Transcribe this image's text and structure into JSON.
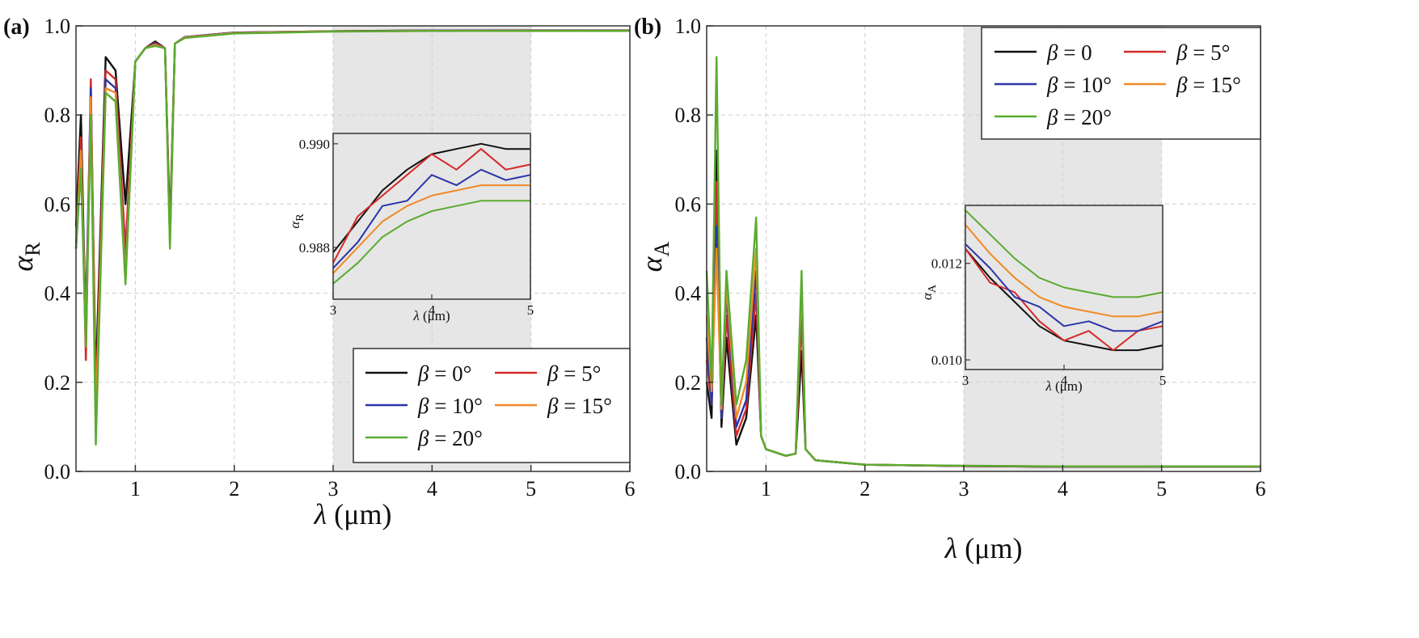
{
  "chart_data": [
    {
      "panel": "(a)",
      "type": "line",
      "xlabel": "λ (μm)",
      "ylabel": "αR",
      "xlim": [
        0.4,
        6
      ],
      "ylim": [
        0,
        1.0
      ],
      "xticks": [
        "1",
        "2",
        "3",
        "4",
        "5",
        "6"
      ],
      "yticks": [
        "0.0",
        "0.2",
        "0.4",
        "0.6",
        "0.8",
        "1.0"
      ],
      "shaded_region": [
        3,
        5
      ],
      "grid": true,
      "legend": {
        "placement": "bottom-right",
        "entries": [
          "β = 0°",
          "β = 5°",
          "β = 10°",
          "β = 15°",
          "β = 20°"
        ]
      },
      "series": [
        {
          "name": "β = 0°",
          "color": "#111111",
          "x": [
            0.4,
            0.45,
            0.5,
            0.55,
            0.6,
            0.7,
            0.8,
            0.9,
            1.0,
            1.1,
            1.2,
            1.3,
            1.35,
            1.4,
            1.5,
            2,
            3,
            4,
            5,
            6
          ],
          "y": [
            0.55,
            0.8,
            0.3,
            0.85,
            0.2,
            0.93,
            0.9,
            0.6,
            0.92,
            0.95,
            0.965,
            0.95,
            0.55,
            0.96,
            0.975,
            0.985,
            0.988,
            0.9897,
            0.9899,
            0.9898
          ]
        },
        {
          "name": "β = 5°",
          "color": "#d42a2a",
          "x": [
            0.4,
            0.45,
            0.5,
            0.55,
            0.6,
            0.7,
            0.8,
            0.9,
            1.0,
            1.1,
            1.2,
            1.3,
            1.35,
            1.4,
            1.5,
            2,
            3,
            4,
            5,
            6
          ],
          "y": [
            0.5,
            0.75,
            0.25,
            0.88,
            0.15,
            0.9,
            0.88,
            0.5,
            0.92,
            0.95,
            0.962,
            0.95,
            0.53,
            0.96,
            0.975,
            0.985,
            0.9878,
            0.9897,
            0.9893,
            0.9892
          ]
        },
        {
          "name": "β = 10°",
          "color": "#2b35a8",
          "x": [
            0.4,
            0.45,
            0.5,
            0.55,
            0.6,
            0.7,
            0.8,
            0.9,
            1.0,
            1.1,
            1.2,
            1.3,
            1.35,
            1.4,
            1.5,
            2,
            3,
            4,
            5,
            6
          ],
          "y": [
            0.5,
            0.7,
            0.35,
            0.86,
            0.1,
            0.88,
            0.86,
            0.45,
            0.92,
            0.95,
            0.96,
            0.95,
            0.52,
            0.96,
            0.975,
            0.985,
            0.9876,
            0.9894,
            0.9892,
            0.9891
          ]
        },
        {
          "name": "β = 15°",
          "color": "#f08a24",
          "x": [
            0.4,
            0.45,
            0.5,
            0.55,
            0.6,
            0.7,
            0.8,
            0.9,
            1.0,
            1.1,
            1.2,
            1.3,
            1.35,
            1.4,
            1.5,
            2,
            3,
            4,
            5,
            6
          ],
          "y": [
            0.5,
            0.72,
            0.3,
            0.84,
            0.12,
            0.86,
            0.85,
            0.44,
            0.92,
            0.95,
            0.958,
            0.95,
            0.51,
            0.96,
            0.974,
            0.984,
            0.9874,
            0.9888,
            0.989,
            0.9889
          ]
        },
        {
          "name": "β = 20°",
          "color": "#5aab30",
          "x": [
            0.4,
            0.45,
            0.5,
            0.55,
            0.6,
            0.7,
            0.8,
            0.9,
            1.0,
            1.1,
            1.2,
            1.3,
            1.35,
            1.4,
            1.5,
            2,
            3,
            4,
            5,
            6
          ],
          "y": [
            0.5,
            0.68,
            0.28,
            0.8,
            0.06,
            0.85,
            0.83,
            0.42,
            0.92,
            0.95,
            0.955,
            0.95,
            0.5,
            0.96,
            0.973,
            0.983,
            0.9872,
            0.9885,
            0.9887,
            0.9886
          ]
        }
      ],
      "inset": {
        "xlabel": "λ (μm)",
        "ylabel": "αR",
        "xlim": [
          3,
          5
        ],
        "ylim": [
          0.987,
          0.9902
        ],
        "xticks": [
          "3",
          "4",
          "5"
        ],
        "yticks": [
          "0.988",
          "0.990"
        ],
        "series": [
          {
            "name": "β = 0°",
            "x": [
              3,
              3.25,
              3.5,
              3.75,
              4,
              4.25,
              4.5,
              4.75,
              5
            ],
            "y": [
              0.9879,
              0.9885,
              0.9891,
              0.9895,
              0.9898,
              0.9899,
              0.99,
              0.9899,
              0.9899
            ]
          },
          {
            "name": "β = 5°",
            "x": [
              3,
              3.25,
              3.5,
              3.75,
              4,
              4.25,
              4.5,
              4.75,
              5
            ],
            "y": [
              0.9877,
              0.9886,
              0.989,
              0.9894,
              0.9898,
              0.9895,
              0.9899,
              0.9895,
              0.9896
            ]
          },
          {
            "name": "β = 10°",
            "x": [
              3,
              3.25,
              3.5,
              3.75,
              4,
              4.25,
              4.5,
              4.75,
              5
            ],
            "y": [
              0.9876,
              0.9881,
              0.9888,
              0.9889,
              0.9894,
              0.9892,
              0.9895,
              0.9893,
              0.9894
            ]
          },
          {
            "name": "β = 15°",
            "x": [
              3,
              3.25,
              3.5,
              3.75,
              4,
              4.25,
              4.5,
              4.75,
              5
            ],
            "y": [
              0.9875,
              0.988,
              0.9885,
              0.9888,
              0.989,
              0.9891,
              0.9892,
              0.9892,
              0.9892
            ]
          },
          {
            "name": "β = 20°",
            "x": [
              3,
              3.25,
              3.5,
              3.75,
              4,
              4.25,
              4.5,
              4.75,
              5
            ],
            "y": [
              0.9873,
              0.9877,
              0.9882,
              0.9885,
              0.9887,
              0.9888,
              0.9889,
              0.9889,
              0.9889
            ]
          }
        ]
      }
    },
    {
      "panel": "(b)",
      "type": "line",
      "xlabel": "λ (μm)",
      "ylabel": "αA",
      "xlim": [
        0.4,
        6
      ],
      "ylim": [
        0,
        1.0
      ],
      "xticks": [
        "1",
        "2",
        "3",
        "4",
        "5",
        "6"
      ],
      "yticks": [
        "0.0",
        "0.2",
        "0.4",
        "0.6",
        "0.8",
        "1.0"
      ],
      "shaded_region": [
        3,
        5
      ],
      "grid": true,
      "legend": {
        "placement": "top-right",
        "entries": [
          "β = 0",
          "β = 5°",
          "β = 10°",
          "β = 15°",
          "β = 20°"
        ]
      },
      "series": [
        {
          "name": "β = 0",
          "color": "#111111",
          "x": [
            0.4,
            0.45,
            0.5,
            0.55,
            0.6,
            0.7,
            0.8,
            0.9,
            0.95,
            1.0,
            1.2,
            1.3,
            1.36,
            1.4,
            1.5,
            2,
            3,
            4,
            5,
            6
          ],
          "y": [
            0.2,
            0.12,
            0.72,
            0.1,
            0.3,
            0.06,
            0.12,
            0.35,
            0.08,
            0.05,
            0.035,
            0.04,
            0.27,
            0.05,
            0.025,
            0.015,
            0.012,
            0.0104,
            0.0103,
            0.0103
          ]
        },
        {
          "name": "β = 5°",
          "color": "#d42a2a",
          "x": [
            0.4,
            0.45,
            0.5,
            0.55,
            0.6,
            0.7,
            0.8,
            0.9,
            0.95,
            1.0,
            1.2,
            1.3,
            1.36,
            1.4,
            1.5,
            2,
            3,
            4,
            5,
            6
          ],
          "y": [
            0.25,
            0.15,
            0.65,
            0.12,
            0.35,
            0.08,
            0.14,
            0.4,
            0.08,
            0.05,
            0.035,
            0.04,
            0.35,
            0.05,
            0.025,
            0.015,
            0.0122,
            0.0104,
            0.0108,
            0.0108
          ]
        },
        {
          "name": "β = 10°",
          "color": "#2b35a8",
          "x": [
            0.4,
            0.45,
            0.5,
            0.55,
            0.6,
            0.7,
            0.8,
            0.9,
            0.95,
            1.0,
            1.2,
            1.3,
            1.36,
            1.4,
            1.5,
            2,
            3,
            4,
            5,
            6
          ],
          "y": [
            0.3,
            0.15,
            0.55,
            0.12,
            0.4,
            0.1,
            0.16,
            0.45,
            0.08,
            0.05,
            0.035,
            0.04,
            0.4,
            0.05,
            0.025,
            0.015,
            0.0122,
            0.0106,
            0.0108,
            0.0108
          ]
        },
        {
          "name": "β = 15°",
          "color": "#f08a24",
          "x": [
            0.4,
            0.45,
            0.5,
            0.55,
            0.6,
            0.7,
            0.8,
            0.9,
            0.95,
            1.0,
            1.2,
            1.3,
            1.36,
            1.4,
            1.5,
            2,
            3,
            4,
            5,
            6
          ],
          "y": [
            0.35,
            0.18,
            0.5,
            0.14,
            0.42,
            0.12,
            0.2,
            0.5,
            0.08,
            0.05,
            0.035,
            0.04,
            0.42,
            0.05,
            0.025,
            0.015,
            0.0126,
            0.011,
            0.011,
            0.011
          ]
        },
        {
          "name": "β = 20°",
          "color": "#5aab30",
          "x": [
            0.4,
            0.45,
            0.5,
            0.55,
            0.6,
            0.7,
            0.8,
            0.9,
            0.95,
            1.0,
            1.2,
            1.3,
            1.36,
            1.4,
            1.5,
            2,
            3,
            4,
            5,
            6
          ],
          "y": [
            0.45,
            0.2,
            0.93,
            0.15,
            0.45,
            0.15,
            0.25,
            0.57,
            0.08,
            0.05,
            0.035,
            0.04,
            0.45,
            0.05,
            0.025,
            0.015,
            0.0128,
            0.0113,
            0.0112,
            0.0112
          ]
        }
      ],
      "inset": {
        "xlabel": "λ (μm)",
        "ylabel": "αA",
        "xlim": [
          3,
          5
        ],
        "ylim": [
          0.0098,
          0.0132
        ],
        "xticks": [
          "3",
          "4",
          "5"
        ],
        "yticks": [
          "0.010",
          "0.012"
        ],
        "series": [
          {
            "name": "β = 0",
            "x": [
              3,
              3.25,
              3.5,
              3.75,
              4,
              4.25,
              4.5,
              4.75,
              5
            ],
            "y": [
              0.0123,
              0.0117,
              0.0112,
              0.0107,
              0.0104,
              0.0103,
              0.0102,
              0.0102,
              0.0103
            ]
          },
          {
            "name": "β = 5°",
            "x": [
              3,
              3.25,
              3.5,
              3.75,
              4,
              4.25,
              4.5,
              4.75,
              5
            ],
            "y": [
              0.0123,
              0.0116,
              0.0114,
              0.0108,
              0.0104,
              0.0106,
              0.0102,
              0.0106,
              0.0107
            ]
          },
          {
            "name": "β = 10°",
            "x": [
              3,
              3.25,
              3.5,
              3.75,
              4,
              4.25,
              4.5,
              4.75,
              5
            ],
            "y": [
              0.0124,
              0.0119,
              0.0113,
              0.0111,
              0.0107,
              0.0108,
              0.0106,
              0.0106,
              0.0108
            ]
          },
          {
            "name": "β = 15°",
            "x": [
              3,
              3.25,
              3.5,
              3.75,
              4,
              4.25,
              4.5,
              4.75,
              5
            ],
            "y": [
              0.0128,
              0.0122,
              0.0117,
              0.0113,
              0.0111,
              0.011,
              0.0109,
              0.0109,
              0.011
            ]
          },
          {
            "name": "β = 20°",
            "x": [
              3,
              3.25,
              3.5,
              3.75,
              4,
              4.25,
              4.5,
              4.75,
              5
            ],
            "y": [
              0.0131,
              0.0126,
              0.0121,
              0.0117,
              0.0115,
              0.0114,
              0.0113,
              0.0113,
              0.0114
            ]
          }
        ]
      }
    }
  ]
}
